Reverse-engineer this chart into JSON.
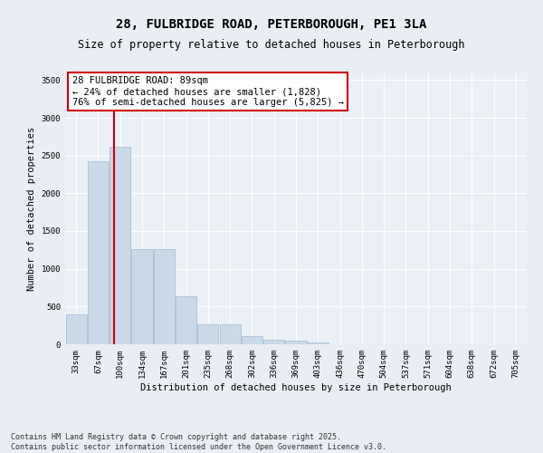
{
  "title": "28, FULBRIDGE ROAD, PETERBOROUGH, PE1 3LA",
  "subtitle": "Size of property relative to detached houses in Peterborough",
  "xlabel": "Distribution of detached houses by size in Peterborough",
  "ylabel": "Number of detached properties",
  "categories": [
    "33sqm",
    "67sqm",
    "100sqm",
    "134sqm",
    "167sqm",
    "201sqm",
    "235sqm",
    "268sqm",
    "302sqm",
    "336sqm",
    "369sqm",
    "403sqm",
    "436sqm",
    "470sqm",
    "504sqm",
    "537sqm",
    "571sqm",
    "604sqm",
    "638sqm",
    "672sqm",
    "705sqm"
  ],
  "values": [
    400,
    2420,
    2620,
    1260,
    1260,
    640,
    270,
    270,
    105,
    55,
    50,
    20,
    0,
    0,
    0,
    0,
    0,
    0,
    0,
    0,
    0
  ],
  "bar_color": "#c9d9e8",
  "bar_edgecolor": "#a0b8d0",
  "vline_x": 1.72,
  "vline_color": "#cc0000",
  "annotation_text": "28 FULBRIDGE ROAD: 89sqm\n← 24% of detached houses are smaller (1,828)\n76% of semi-detached houses are larger (5,825) →",
  "annotation_box_edgecolor": "#cc0000",
  "annotation_box_facecolor": "white",
  "ylim": [
    0,
    3600
  ],
  "yticks": [
    0,
    500,
    1000,
    1500,
    2000,
    2500,
    3000,
    3500
  ],
  "footer": "Contains HM Land Registry data © Crown copyright and database right 2025.\nContains public sector information licensed under the Open Government Licence v3.0.",
  "bg_color": "#e8eef4",
  "plot_bg_color": "#eaf0f6",
  "title_fontsize": 10,
  "subtitle_fontsize": 8.5,
  "axis_label_fontsize": 7.5,
  "tick_fontsize": 6.5,
  "annotation_fontsize": 7.5,
  "footer_fontsize": 6
}
